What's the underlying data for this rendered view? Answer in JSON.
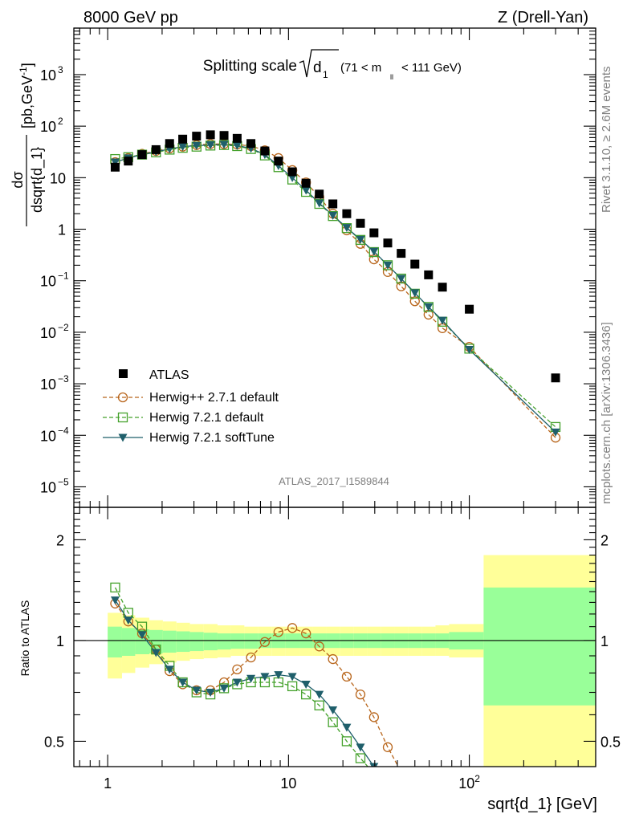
{
  "header": {
    "energy_label": "8000 GeV pp",
    "process_label": "Z (Drell-Yan)",
    "title_main": "Splitting scale",
    "title_sqrt_var": "d",
    "title_sqrt_sub": "1",
    "title_range_left": "(71 < m",
    "title_range_sub": "ll",
    "title_range_right": "< 111 GeV)",
    "analysis_id": "ATLAS_2017_I1589844",
    "rivet_version": "Rivet 3.1.10, ≥ 2.6M events",
    "mcplots_ref": "mcplots.cern.ch [arXiv:1306.3436]"
  },
  "axes": {
    "ylabel_top_num": "dσ",
    "ylabel_top_den": "dsqrt{d_1}",
    "ylabel_top_unit": "[pb,GeV",
    "ylabel_top_unit_sup": "-1",
    "ylabel_top_unit_close": "]",
    "ylabel_bottom": "Ratio to ATLAS",
    "xlabel": "sqrt{d_1} [GeV]",
    "x_ticks": [
      {
        "v": 1,
        "label": "1"
      },
      {
        "v": 10,
        "label": "10"
      },
      {
        "v": 100,
        "label": "10",
        "sup": "2"
      }
    ],
    "y_ticks_top": [
      {
        "v": 1e-05,
        "base": "10",
        "sup": "−5"
      },
      {
        "v": 0.0001,
        "base": "10",
        "sup": "−4"
      },
      {
        "v": 0.001,
        "base": "10",
        "sup": "−3"
      },
      {
        "v": 0.01,
        "base": "10",
        "sup": "−2"
      },
      {
        "v": 0.1,
        "base": "10",
        "sup": "−1"
      },
      {
        "v": 1,
        "base": "1",
        "sup": ""
      },
      {
        "v": 10,
        "base": "10",
        "sup": ""
      },
      {
        "v": 100,
        "base": "10",
        "sup": "2"
      },
      {
        "v": 1000,
        "base": "10",
        "sup": "3"
      }
    ],
    "y_ticks_ratio": [
      {
        "v": 0.5,
        "label": "0.5"
      },
      {
        "v": 1,
        "label": "1"
      },
      {
        "v": 2,
        "label": "2"
      }
    ]
  },
  "legend": [
    {
      "key": "atlas",
      "label": "ATLAS"
    },
    {
      "key": "hpp",
      "label": "Herwig++ 2.7.1 default"
    },
    {
      "key": "h721",
      "label": "Herwig 7.2.1 default"
    },
    {
      "key": "soft",
      "label": "Herwig 7.2.1 softTune"
    }
  ],
  "colors": {
    "data": "#000000",
    "herwigpp": "#b8651b",
    "herwig721": "#44a12b",
    "softtune": "#1f5f6b",
    "band_inner": "#99ff99",
    "band_outer": "#ffff99"
  },
  "chart_data": {
    "type": "scatter",
    "x_scale": "log",
    "y_scale_main": "log",
    "y_scale_ratio": "log",
    "xlim": [
      0.65,
      500
    ],
    "ylim_main": [
      4e-06,
      8000
    ],
    "ylim_ratio": [
      0.42,
      2.5
    ],
    "x": [
      1.1,
      1.3,
      1.55,
      1.85,
      2.2,
      2.6,
      3.1,
      3.7,
      4.4,
      5.2,
      6.2,
      7.4,
      8.8,
      10.5,
      12.5,
      14.8,
      17.6,
      21,
      25,
      29.7,
      35.4,
      42,
      50,
      59.5,
      71,
      100,
      300
    ],
    "series": [
      {
        "name": "ATLAS",
        "key": "atlas",
        "values": [
          16,
          21,
          28,
          35,
          46,
          56,
          64,
          68,
          66,
          58,
          46,
          33,
          21,
          13,
          7.8,
          4.8,
          3.1,
          2.0,
          1.3,
          0.85,
          0.54,
          0.34,
          0.21,
          0.13,
          0.075,
          0.028,
          0.0013
        ]
      },
      {
        "name": "Herwig++ 2.7.1 default",
        "key": "hpp",
        "values": [
          20,
          24,
          29,
          33,
          37,
          40,
          43,
          45,
          45,
          44,
          41,
          34,
          24,
          14,
          8.1,
          4.2,
          2.0,
          0.95,
          0.52,
          0.26,
          0.148,
          0.078,
          0.04,
          0.022,
          0.012,
          0.0052,
          9e-05
        ],
        "ratio_x": [
          1.1,
          1.3,
          1.55,
          1.85,
          2.2,
          2.6,
          3.1,
          3.7,
          4.4,
          5.2,
          6.2,
          7.4,
          8.8,
          10.5,
          12.5,
          14.8,
          17.6,
          21,
          25,
          29.7,
          35.4,
          42
        ],
        "ratio": [
          1.29,
          1.14,
          1.05,
          0.94,
          0.81,
          0.74,
          0.71,
          0.71,
          0.75,
          0.82,
          0.89,
          0.99,
          1.06,
          1.09,
          1.05,
          0.96,
          0.88,
          0.78,
          0.69,
          0.59,
          0.48,
          0.405
        ]
      },
      {
        "name": "Herwig 7.2.1 default",
        "key": "h721",
        "values": [
          23,
          25,
          28,
          31,
          35,
          38,
          40,
          42,
          43,
          41,
          36,
          27,
          16,
          9.2,
          5.3,
          3.1,
          1.8,
          1.05,
          0.62,
          0.36,
          0.2,
          0.11,
          0.056,
          0.031,
          0.016,
          0.0048,
          0.000145
        ],
        "ratio_x": [
          1.1,
          1.3,
          1.55,
          1.85,
          2.2,
          2.6,
          3.1,
          3.7,
          4.4,
          5.2,
          6.2,
          7.4,
          8.8,
          10.5,
          12.5,
          14.8,
          17.6,
          21,
          25,
          29.7
        ],
        "ratio": [
          1.44,
          1.21,
          1.1,
          0.94,
          0.84,
          0.75,
          0.7,
          0.69,
          0.72,
          0.74,
          0.75,
          0.75,
          0.75,
          0.73,
          0.69,
          0.64,
          0.57,
          0.5,
          0.445,
          0.4
        ]
      },
      {
        "name": "Herwig 7.2.1 softTune",
        "key": "soft",
        "values": [
          20,
          24,
          28,
          32,
          36,
          40,
          42,
          43,
          44,
          42,
          37,
          28,
          17,
          10,
          5.7,
          3.2,
          1.85,
          1.07,
          0.63,
          0.37,
          0.2,
          0.11,
          0.058,
          0.031,
          0.017,
          0.0046,
          0.000115
        ],
        "ratio_x": [
          1.1,
          1.3,
          1.55,
          1.85,
          2.2,
          2.6,
          3.1,
          3.7,
          4.4,
          5.2,
          6.2,
          7.4,
          8.8,
          10.5,
          12.5,
          14.8,
          17.6,
          21,
          25,
          29.7
        ],
        "ratio": [
          1.32,
          1.15,
          1.04,
          0.92,
          0.82,
          0.75,
          0.71,
          0.7,
          0.72,
          0.75,
          0.77,
          0.78,
          0.79,
          0.78,
          0.74,
          0.69,
          0.62,
          0.55,
          0.48,
          0.42
        ]
      }
    ],
    "uncertainty_bands": {
      "bin_edges": [
        1,
        1.2,
        1.42,
        1.7,
        2.02,
        2.4,
        2.85,
        3.4,
        4.05,
        4.8,
        5.7,
        6.8,
        8.1,
        9.6,
        11.5,
        13.6,
        16.2,
        19.3,
        23,
        27.3,
        32.5,
        38.6,
        46,
        54.6,
        65,
        77.3,
        120,
        500
      ],
      "inner_lo": [
        0.89,
        0.9,
        0.91,
        0.915,
        0.92,
        0.925,
        0.93,
        0.935,
        0.94,
        0.945,
        0.945,
        0.95,
        0.95,
        0.95,
        0.95,
        0.95,
        0.95,
        0.95,
        0.95,
        0.95,
        0.95,
        0.95,
        0.95,
        0.95,
        0.95,
        0.94,
        0.64
      ],
      "inner_hi": [
        1.1,
        1.09,
        1.08,
        1.075,
        1.07,
        1.065,
        1.06,
        1.055,
        1.05,
        1.05,
        1.05,
        1.05,
        1.05,
        1.05,
        1.05,
        1.05,
        1.05,
        1.05,
        1.05,
        1.05,
        1.05,
        1.05,
        1.05,
        1.05,
        1.05,
        1.06,
        1.44
      ],
      "outer_lo": [
        0.77,
        0.8,
        0.83,
        0.85,
        0.86,
        0.87,
        0.88,
        0.885,
        0.89,
        0.9,
        0.9,
        0.9,
        0.9,
        0.9,
        0.9,
        0.9,
        0.9,
        0.9,
        0.9,
        0.9,
        0.9,
        0.9,
        0.9,
        0.9,
        0.9,
        0.89,
        0.42
      ],
      "outer_hi": [
        1.21,
        1.19,
        1.17,
        1.15,
        1.14,
        1.13,
        1.12,
        1.12,
        1.11,
        1.11,
        1.1,
        1.1,
        1.1,
        1.1,
        1.1,
        1.1,
        1.1,
        1.1,
        1.1,
        1.1,
        1.1,
        1.1,
        1.1,
        1.1,
        1.11,
        1.12,
        1.8
      ]
    }
  }
}
